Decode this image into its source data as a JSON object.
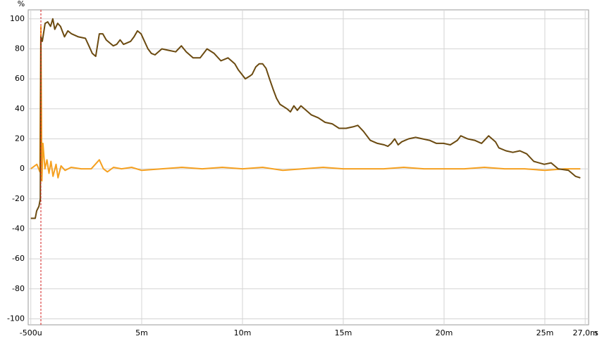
{
  "chart_data": {
    "type": "line",
    "y_unit": "%",
    "x_unit": "s",
    "xlim": [
      -0.63,
      27.17
    ],
    "ylim": [
      -104,
      106
    ],
    "xticks": [
      {
        "value": -0.5,
        "label": "-500u"
      },
      {
        "value": 5,
        "label": "5m"
      },
      {
        "value": 10,
        "label": "10m"
      },
      {
        "value": 15,
        "label": "15m"
      },
      {
        "value": 20,
        "label": "20m"
      },
      {
        "value": 25,
        "label": "25m"
      },
      {
        "value": 27,
        "label": "27,0m"
      }
    ],
    "yticks": [
      -100,
      -80,
      -60,
      -40,
      -20,
      0,
      20,
      40,
      60,
      80,
      100
    ],
    "grid": true,
    "cursor": 0,
    "cursor_color": "#d42020",
    "series": [
      {
        "color": "#f5a020",
        "x": [
          -0.5,
          -0.2,
          -0.05,
          0,
          0.05,
          0.1,
          0.2,
          0.3,
          0.4,
          0.5,
          0.6,
          0.75,
          0.85,
          1.0,
          1.2,
          1.5,
          2.0,
          2.5,
          2.9,
          3.1,
          3.3,
          3.6,
          4.0,
          4.5,
          5.0,
          6,
          7,
          8,
          9,
          10,
          11,
          12,
          13,
          14,
          15,
          16,
          17,
          18,
          19,
          20,
          21,
          22,
          23,
          24,
          25,
          26,
          26.76
        ],
        "values": [
          0,
          3,
          -2,
          95,
          -8,
          17,
          0,
          6,
          -3,
          5,
          -5,
          3,
          -6,
          2,
          -1,
          1,
          0,
          0,
          6,
          0,
          -2,
          1,
          0,
          1,
          -1,
          0,
          1,
          0,
          1,
          0,
          1,
          -1,
          0,
          1,
          0,
          0,
          0,
          1,
          0,
          0,
          0,
          1,
          0,
          0,
          -1,
          0,
          0
        ]
      },
      {
        "color": "#6b4a10",
        "x": [
          -0.5,
          -0.28,
          -0.21,
          -0.1,
          -0.03,
          0,
          0.07,
          0.21,
          0.34,
          0.48,
          0.59,
          0.69,
          0.83,
          0.97,
          1.17,
          1.34,
          1.52,
          1.86,
          2.21,
          2.38,
          2.55,
          2.72,
          2.9,
          3.07,
          3.24,
          3.41,
          3.59,
          3.76,
          3.93,
          4.1,
          4.28,
          4.45,
          4.62,
          4.79,
          4.97,
          5.14,
          5.31,
          5.48,
          5.66,
          6.0,
          6.34,
          6.69,
          6.97,
          7.21,
          7.55,
          7.9,
          8.24,
          8.59,
          8.93,
          9.28,
          9.62,
          9.79,
          9.97,
          10.14,
          10.38,
          10.48,
          10.66,
          10.83,
          11.0,
          11.17,
          11.34,
          11.52,
          11.69,
          11.86,
          12.21,
          12.38,
          12.55,
          12.72,
          12.9,
          13.07,
          13.41,
          13.76,
          14.1,
          14.45,
          14.79,
          15.14,
          15.48,
          15.72,
          16.0,
          16.34,
          16.69,
          17.03,
          17.21,
          17.38,
          17.55,
          17.72,
          17.9,
          18.24,
          18.59,
          18.93,
          19.28,
          19.62,
          19.97,
          20.31,
          20.66,
          20.83,
          21.17,
          21.52,
          21.86,
          22.21,
          22.55,
          22.72,
          23.07,
          23.41,
          23.76,
          24.1,
          24.45,
          24.97,
          25.31,
          25.66,
          26.17,
          26.52,
          26.76
        ],
        "values": [
          -33,
          -33,
          -28,
          -25,
          -20,
          88,
          85,
          97,
          98,
          95,
          100,
          93,
          97,
          95,
          88,
          92,
          90,
          88,
          87,
          82,
          77,
          75,
          90,
          90,
          86,
          84,
          82,
          83,
          86,
          83,
          84,
          85,
          88,
          92,
          90,
          85,
          80,
          77,
          76,
          80,
          79,
          78,
          82,
          78,
          74,
          74,
          80,
          77,
          72,
          74,
          70,
          66,
          63,
          60,
          62,
          63,
          68,
          70,
          70,
          67,
          60,
          53,
          47,
          43,
          40,
          38,
          42,
          39,
          42,
          40,
          36,
          34,
          31,
          30,
          27,
          27,
          28,
          29,
          25,
          19,
          17,
          16,
          15,
          17,
          20,
          16,
          18,
          20,
          21,
          20,
          19,
          17,
          17,
          16,
          19,
          22,
          20,
          19,
          17,
          22,
          18,
          14,
          12,
          11,
          12,
          10,
          5,
          3,
          4,
          0,
          -1,
          -5,
          -6
        ]
      }
    ]
  }
}
